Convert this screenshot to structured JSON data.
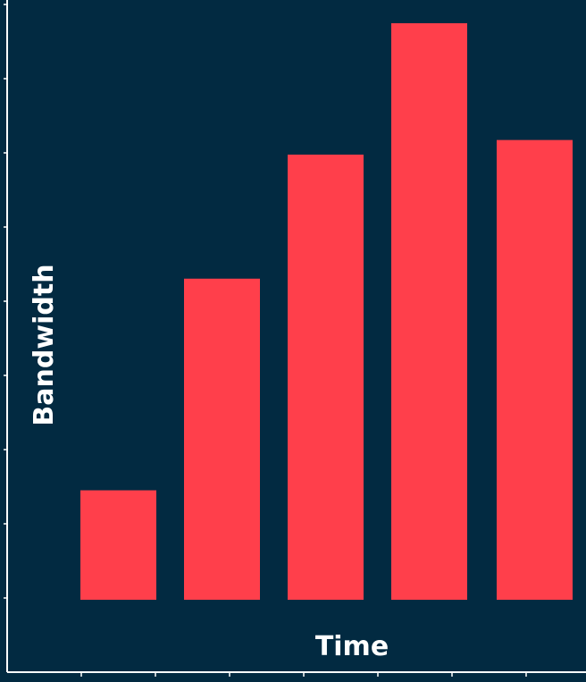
{
  "chart_data": {
    "type": "bar",
    "categories": [
      "",
      "",
      "",
      "",
      ""
    ],
    "values": [
      1.5,
      4.4,
      6.1,
      7.9,
      6.3
    ],
    "xlabel": "Time",
    "ylabel": "Bandwidth",
    "ylim": [
      0,
      8.2
    ],
    "grid": false,
    "colors": {
      "background": "#022a41",
      "bar": "#ff3f4b",
      "axis": "#ffffff",
      "text": "#ffffff"
    }
  }
}
